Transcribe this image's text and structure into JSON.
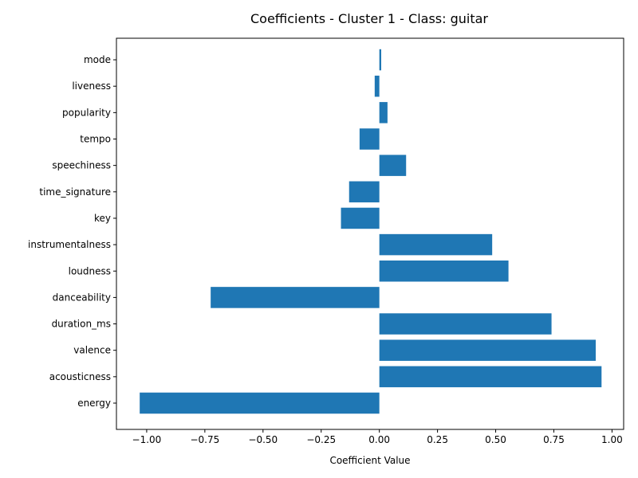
{
  "chart_data": {
    "type": "bar",
    "orientation": "horizontal",
    "title": "Coefficients - Cluster 1 - Class: guitar",
    "xlabel": "Coefficient Value",
    "ylabel": "",
    "xlim": [
      -1.13,
      1.05
    ],
    "xticks": [
      -1.0,
      -0.75,
      -0.5,
      -0.25,
      0.0,
      0.25,
      0.5,
      0.75,
      1.0
    ],
    "xtick_labels": [
      "−1.00",
      "−0.75",
      "−0.50",
      "−0.25",
      "0.00",
      "0.25",
      "0.50",
      "0.75",
      "1.00"
    ],
    "categories": [
      "energy",
      "acousticness",
      "valence",
      "duration_ms",
      "danceability",
      "loudness",
      "instrumentalness",
      "key",
      "time_signature",
      "speechiness",
      "tempo",
      "popularity",
      "liveness",
      "mode"
    ],
    "values": [
      -1.03,
      0.955,
      0.93,
      0.74,
      -0.725,
      0.555,
      0.485,
      -0.165,
      -0.13,
      0.115,
      -0.085,
      0.035,
      -0.02,
      0.008
    ],
    "bar_color": "#1f77b4",
    "grid": false,
    "legend": "none"
  }
}
